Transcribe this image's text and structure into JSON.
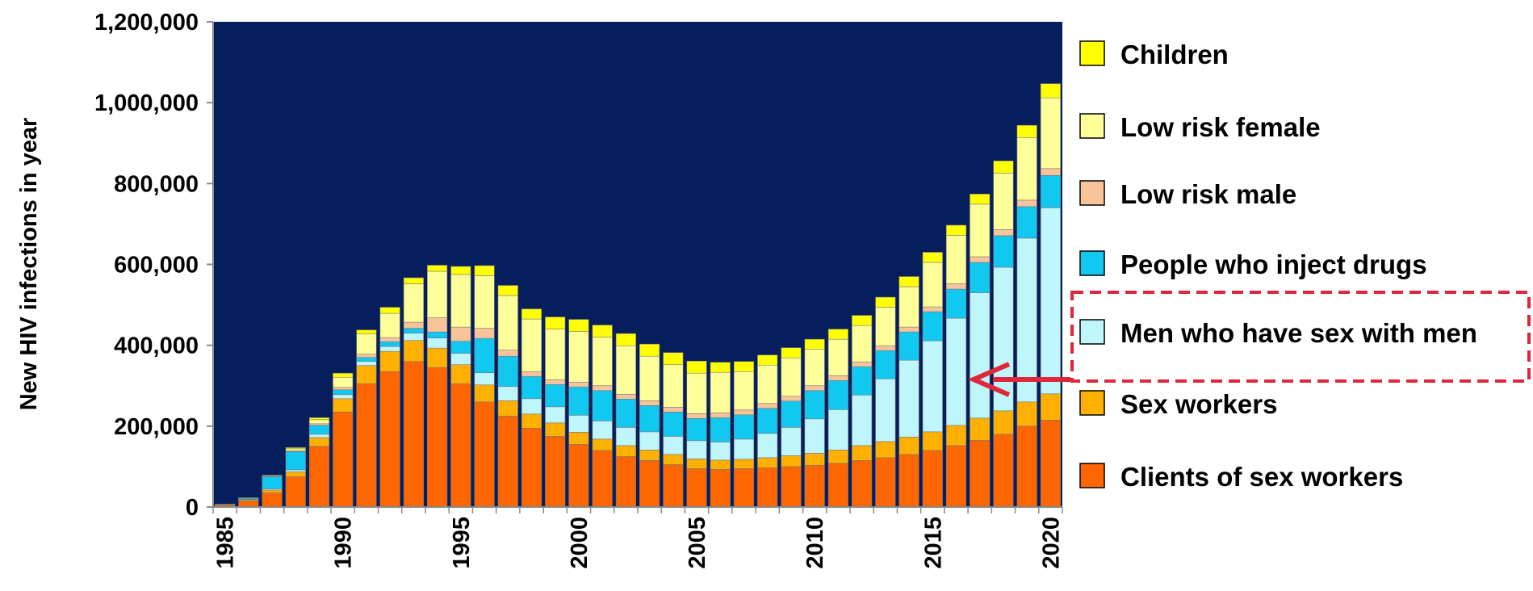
{
  "chart_data": {
    "type": "bar",
    "stacked": true,
    "ylabel": "New HIV infections in year",
    "xlabel": "",
    "ylim": [
      0,
      1200000
    ],
    "y_ticks": [
      0,
      200000,
      400000,
      600000,
      800000,
      1000000,
      1200000
    ],
    "y_tick_labels": [
      "0",
      "200,000",
      "400,000",
      "600,000",
      "800,000",
      "1,000,000",
      "1,200,000"
    ],
    "x_tick_labels": [
      "1985",
      "1990",
      "1995",
      "2000",
      "2005",
      "2010",
      "2015",
      "2020"
    ],
    "x": [
      1985,
      1986,
      1987,
      1988,
      1989,
      1990,
      1991,
      1992,
      1993,
      1994,
      1995,
      1996,
      1997,
      1998,
      1999,
      2000,
      2001,
      2002,
      2003,
      2004,
      2005,
      2006,
      2007,
      2008,
      2009,
      2010,
      2011,
      2012,
      2013,
      2014,
      2015,
      2016,
      2017,
      2018,
      2019,
      2020
    ],
    "plot_background": "#061E5C",
    "grid": false,
    "legend_position": "right",
    "series": [
      {
        "name": "Clients of sex workers",
        "color": "#FF6600",
        "values": [
          5000,
          15000,
          35000,
          75000,
          150000,
          235000,
          305000,
          335000,
          360000,
          345000,
          305000,
          260000,
          225000,
          195000,
          175000,
          155000,
          140000,
          125000,
          115000,
          105000,
          95000,
          93000,
          95000,
          97000,
          100000,
          103000,
          108000,
          115000,
          122000,
          130000,
          140000,
          152000,
          165000,
          180000,
          200000,
          215000
        ]
      },
      {
        "name": "Sex workers",
        "color": "#FFB000",
        "values": [
          1000,
          3000,
          7000,
          12000,
          22000,
          33000,
          45000,
          50000,
          52000,
          48000,
          47000,
          42000,
          38000,
          35000,
          33000,
          30000,
          28000,
          27000,
          26000,
          25000,
          24000,
          23000,
          23000,
          25000,
          27000,
          30000,
          33000,
          37000,
          40000,
          43000,
          46000,
          50000,
          55000,
          58000,
          60000,
          65000
        ]
      },
      {
        "name": "Men who have sex with men",
        "color": "#BFF6FB",
        "values": [
          500,
          1000,
          3000,
          5000,
          8000,
          10000,
          10000,
          12000,
          18000,
          25000,
          28000,
          30000,
          35000,
          38000,
          40000,
          42000,
          45000,
          45000,
          45000,
          45000,
          45000,
          45000,
          50000,
          60000,
          70000,
          85000,
          100000,
          125000,
          155000,
          190000,
          225000,
          265000,
          310000,
          355000,
          405000,
          460000
        ]
      },
      {
        "name": "People who inject drugs",
        "color": "#10C8F0",
        "values": [
          500,
          3000,
          30000,
          45000,
          22000,
          12000,
          10000,
          12000,
          12000,
          15000,
          30000,
          85000,
          75000,
          55000,
          55000,
          70000,
          75000,
          70000,
          65000,
          60000,
          55000,
          60000,
          60000,
          62000,
          65000,
          70000,
          72000,
          70000,
          70000,
          70000,
          72000,
          72000,
          75000,
          78000,
          78000,
          80000
        ]
      },
      {
        "name": "Low risk male",
        "color": "#F9C49A",
        "values": [
          100,
          300,
          1000,
          2000,
          4000,
          6000,
          8000,
          10000,
          15000,
          35000,
          35000,
          25000,
          15000,
          12000,
          12000,
          12000,
          12000,
          12000,
          12000,
          12000,
          12000,
          12000,
          12000,
          12000,
          12000,
          12000,
          12000,
          12000,
          12000,
          12000,
          12000,
          13000,
          14000,
          15000,
          16000,
          17000
        ]
      },
      {
        "name": "Low risk female",
        "color": "#FFFF99",
        "values": [
          200,
          500,
          2000,
          5000,
          10000,
          25000,
          50000,
          60000,
          95000,
          115000,
          130000,
          130000,
          135000,
          130000,
          125000,
          125000,
          120000,
          120000,
          110000,
          105000,
          100000,
          100000,
          95000,
          95000,
          95000,
          90000,
          90000,
          90000,
          95000,
          100000,
          110000,
          120000,
          130000,
          140000,
          155000,
          175000
        ]
      },
      {
        "name": "Children",
        "color": "#FFFF00",
        "values": [
          100,
          200,
          1000,
          3000,
          5000,
          10000,
          10000,
          15000,
          15000,
          15000,
          20000,
          25000,
          25000,
          25000,
          30000,
          30000,
          30000,
          30000,
          30000,
          30000,
          30000,
          25000,
          25000,
          25000,
          25000,
          25000,
          25000,
          25000,
          25000,
          25000,
          25000,
          25000,
          25000,
          30000,
          30000,
          35000
        ]
      }
    ],
    "legend_order": [
      "Children",
      "Low risk female",
      "Low risk male",
      "People who inject drugs",
      "Men who have sex with men",
      "Sex workers",
      "Clients of sex workers"
    ],
    "annotation": {
      "highlight": "Men who have sex with men",
      "style": "dashed-box-and-arrow",
      "color": "#E0263A"
    }
  }
}
